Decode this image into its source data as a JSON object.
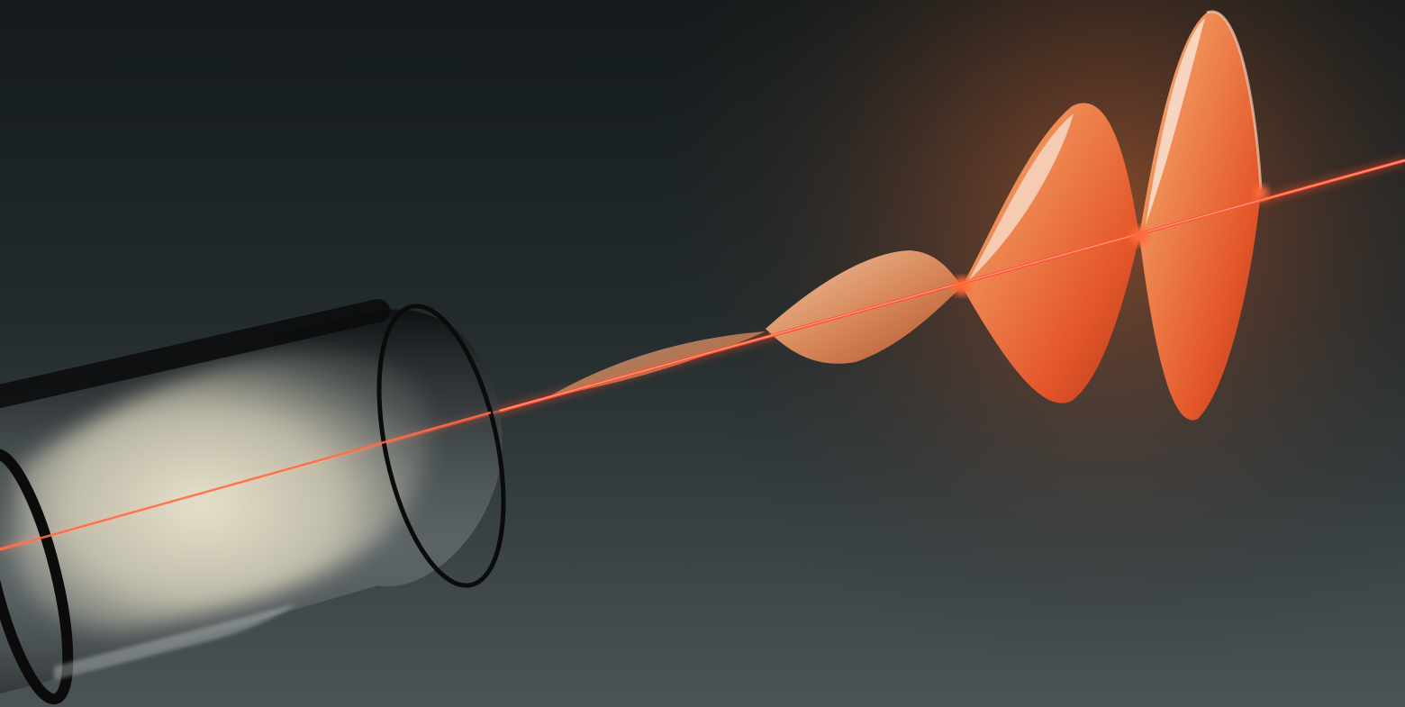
{
  "scene": {
    "subject": "laser-pulse-exiting-gas-filled-glass-tube",
    "palette": {
      "background_top": "#141a1b",
      "background_bottom": "#4a5356",
      "glow": "#d8652f",
      "beam": "#ff4a2a",
      "wave_fill": "#e8602e",
      "wave_highlight": "#f2c7a8",
      "gas": "#e6e0c8",
      "glass_rim": "#0b0b0b"
    },
    "wave_lobes": 4
  }
}
